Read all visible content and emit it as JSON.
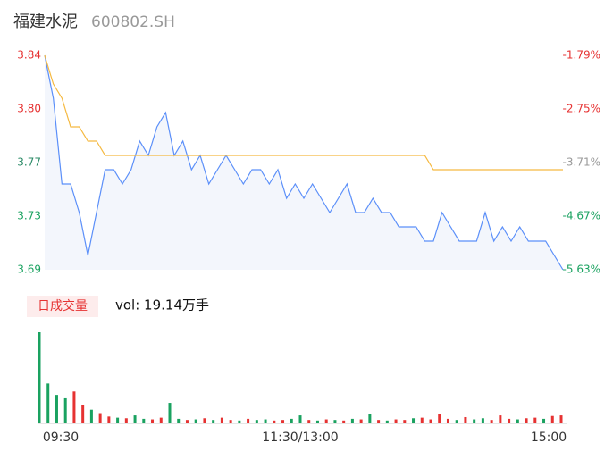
{
  "chart_data": [
    {
      "type": "line",
      "title": "福建水泥",
      "subtitle": "600802.SH",
      "x": [
        0,
        4,
        8,
        12,
        16,
        20,
        24,
        28,
        32,
        36,
        40,
        44,
        48,
        52,
        56,
        60,
        64,
        68,
        72,
        76,
        80,
        84,
        88,
        92,
        96,
        100,
        104,
        108,
        112,
        116,
        120,
        124,
        128,
        132,
        136,
        140,
        144,
        148,
        152,
        156,
        160,
        164,
        168,
        172,
        176,
        180,
        184,
        188,
        192,
        196,
        200,
        204,
        208,
        212,
        216,
        220,
        224,
        228,
        232,
        236,
        240
      ],
      "xlim": [
        0,
        240
      ],
      "ylim": [
        3.69,
        3.84
      ],
      "yticks": [
        {
          "value": 3.84,
          "label": "3.84"
        },
        {
          "value": 3.8025,
          "label": "3.80"
        },
        {
          "value": 3.765,
          "label": "3.77"
        },
        {
          "value": 3.7275,
          "label": "3.73"
        },
        {
          "value": 3.69,
          "label": "3.69"
        }
      ],
      "ytick_colors": [
        "#e63232",
        "#e63232",
        "#2a8a66",
        "#1aa260",
        "#1aa260"
      ],
      "y2lim": [
        -5.63,
        -1.79
      ],
      "y2ticks": [
        {
          "value": -1.79,
          "label": "-1.79%"
        },
        {
          "value": -2.75,
          "label": "-2.75%"
        },
        {
          "value": -3.71,
          "label": "-3.71%"
        },
        {
          "value": -4.67,
          "label": "-4.67%"
        },
        {
          "value": -5.63,
          "label": "-5.63%"
        }
      ],
      "y2tick_colors": [
        "#e63232",
        "#e63232",
        "#999999",
        "#1aa260",
        "#1aa260"
      ],
      "series": [
        {
          "color": "#5b8ff9",
          "values": [
            3.84,
            3.81,
            3.75,
            3.75,
            3.73,
            3.7,
            3.73,
            3.76,
            3.76,
            3.75,
            3.76,
            3.78,
            3.77,
            3.79,
            3.8,
            3.77,
            3.78,
            3.76,
            3.77,
            3.75,
            3.76,
            3.77,
            3.76,
            3.75,
            3.76,
            3.76,
            3.75,
            3.76,
            3.74,
            3.75,
            3.74,
            3.75,
            3.74,
            3.73,
            3.74,
            3.75,
            3.73,
            3.73,
            3.74,
            3.73,
            3.73,
            3.72,
            3.72,
            3.72,
            3.71,
            3.71,
            3.73,
            3.72,
            3.71,
            3.71,
            3.71,
            3.73,
            3.71,
            3.72,
            3.71,
            3.72,
            3.71,
            3.71,
            3.71,
            3.7,
            3.69
          ]
        },
        {
          "color": "#f5b940",
          "values": [
            3.84,
            3.82,
            3.81,
            3.79,
            3.79,
            3.78,
            3.78,
            3.77,
            3.77,
            3.77,
            3.77,
            3.77,
            3.77,
            3.77,
            3.77,
            3.77,
            3.77,
            3.77,
            3.77,
            3.77,
            3.77,
            3.77,
            3.77,
            3.77,
            3.77,
            3.77,
            3.77,
            3.77,
            3.77,
            3.77,
            3.77,
            3.77,
            3.77,
            3.77,
            3.77,
            3.77,
            3.77,
            3.77,
            3.77,
            3.77,
            3.77,
            3.77,
            3.77,
            3.77,
            3.77,
            3.76,
            3.76,
            3.76,
            3.76,
            3.76,
            3.76,
            3.76,
            3.76,
            3.76,
            3.76,
            3.76,
            3.76,
            3.76,
            3.76,
            3.76,
            3.76
          ]
        }
      ]
    },
    {
      "type": "bar",
      "title": "日成交量",
      "subtitle": "vol: 19.14万手",
      "x": [
        0,
        4,
        8,
        12,
        16,
        20,
        24,
        28,
        32,
        36,
        40,
        44,
        48,
        52,
        56,
        60,
        64,
        68,
        72,
        76,
        80,
        84,
        88,
        92,
        96,
        100,
        104,
        108,
        112,
        116,
        120,
        124,
        128,
        132,
        136,
        140,
        144,
        148,
        152,
        156,
        160,
        164,
        168,
        172,
        176,
        180,
        184,
        188,
        192,
        196,
        200,
        204,
        208,
        212,
        216,
        220,
        224,
        228,
        232,
        236,
        240
      ],
      "xlim": [
        0,
        240
      ],
      "xticks": [
        {
          "value": 0,
          "label": "09:30"
        },
        {
          "value": 120,
          "label": "11:30/13:00"
        },
        {
          "value": 240,
          "label": "15:00"
        }
      ],
      "ylim": [
        0,
        8000
      ],
      "values": [
        8000,
        3500,
        2500,
        2200,
        2800,
        1600,
        1200,
        900,
        600,
        500,
        450,
        700,
        400,
        350,
        500,
        1800,
        400,
        300,
        350,
        450,
        300,
        500,
        300,
        250,
        400,
        300,
        350,
        250,
        300,
        400,
        700,
        300,
        250,
        350,
        300,
        250,
        400,
        350,
        800,
        300,
        250,
        350,
        300,
        450,
        500,
        350,
        800,
        400,
        300,
        550,
        350,
        450,
        300,
        700,
        400,
        350,
        450,
        500,
        400,
        650,
        700
      ],
      "colors": [
        "#1aa260",
        "#1aa260",
        "#1aa260",
        "#1aa260",
        "#e63232",
        "#e63232",
        "#1aa260",
        "#e63232",
        "#e63232",
        "#1aa260",
        "#e63232",
        "#1aa260",
        "#1aa260",
        "#e63232",
        "#e63232",
        "#1aa260",
        "#1aa260",
        "#e63232",
        "#1aa260",
        "#e63232",
        "#1aa260",
        "#e63232",
        "#e63232",
        "#1aa260",
        "#e63232",
        "#1aa260",
        "#1aa260",
        "#e63232",
        "#e63232",
        "#1aa260",
        "#1aa260",
        "#e63232",
        "#1aa260",
        "#e63232",
        "#1aa260",
        "#e63232",
        "#1aa260",
        "#e63232",
        "#1aa260",
        "#e63232",
        "#1aa260",
        "#e63232",
        "#e63232",
        "#1aa260",
        "#e63232",
        "#e63232",
        "#e63232",
        "#e63232",
        "#1aa260",
        "#e63232",
        "#1aa260",
        "#1aa260",
        "#e63232",
        "#e63232",
        "#e63232",
        "#1aa260",
        "#e63232",
        "#e63232",
        "#1aa260",
        "#e63232",
        "#e63232"
      ]
    }
  ]
}
